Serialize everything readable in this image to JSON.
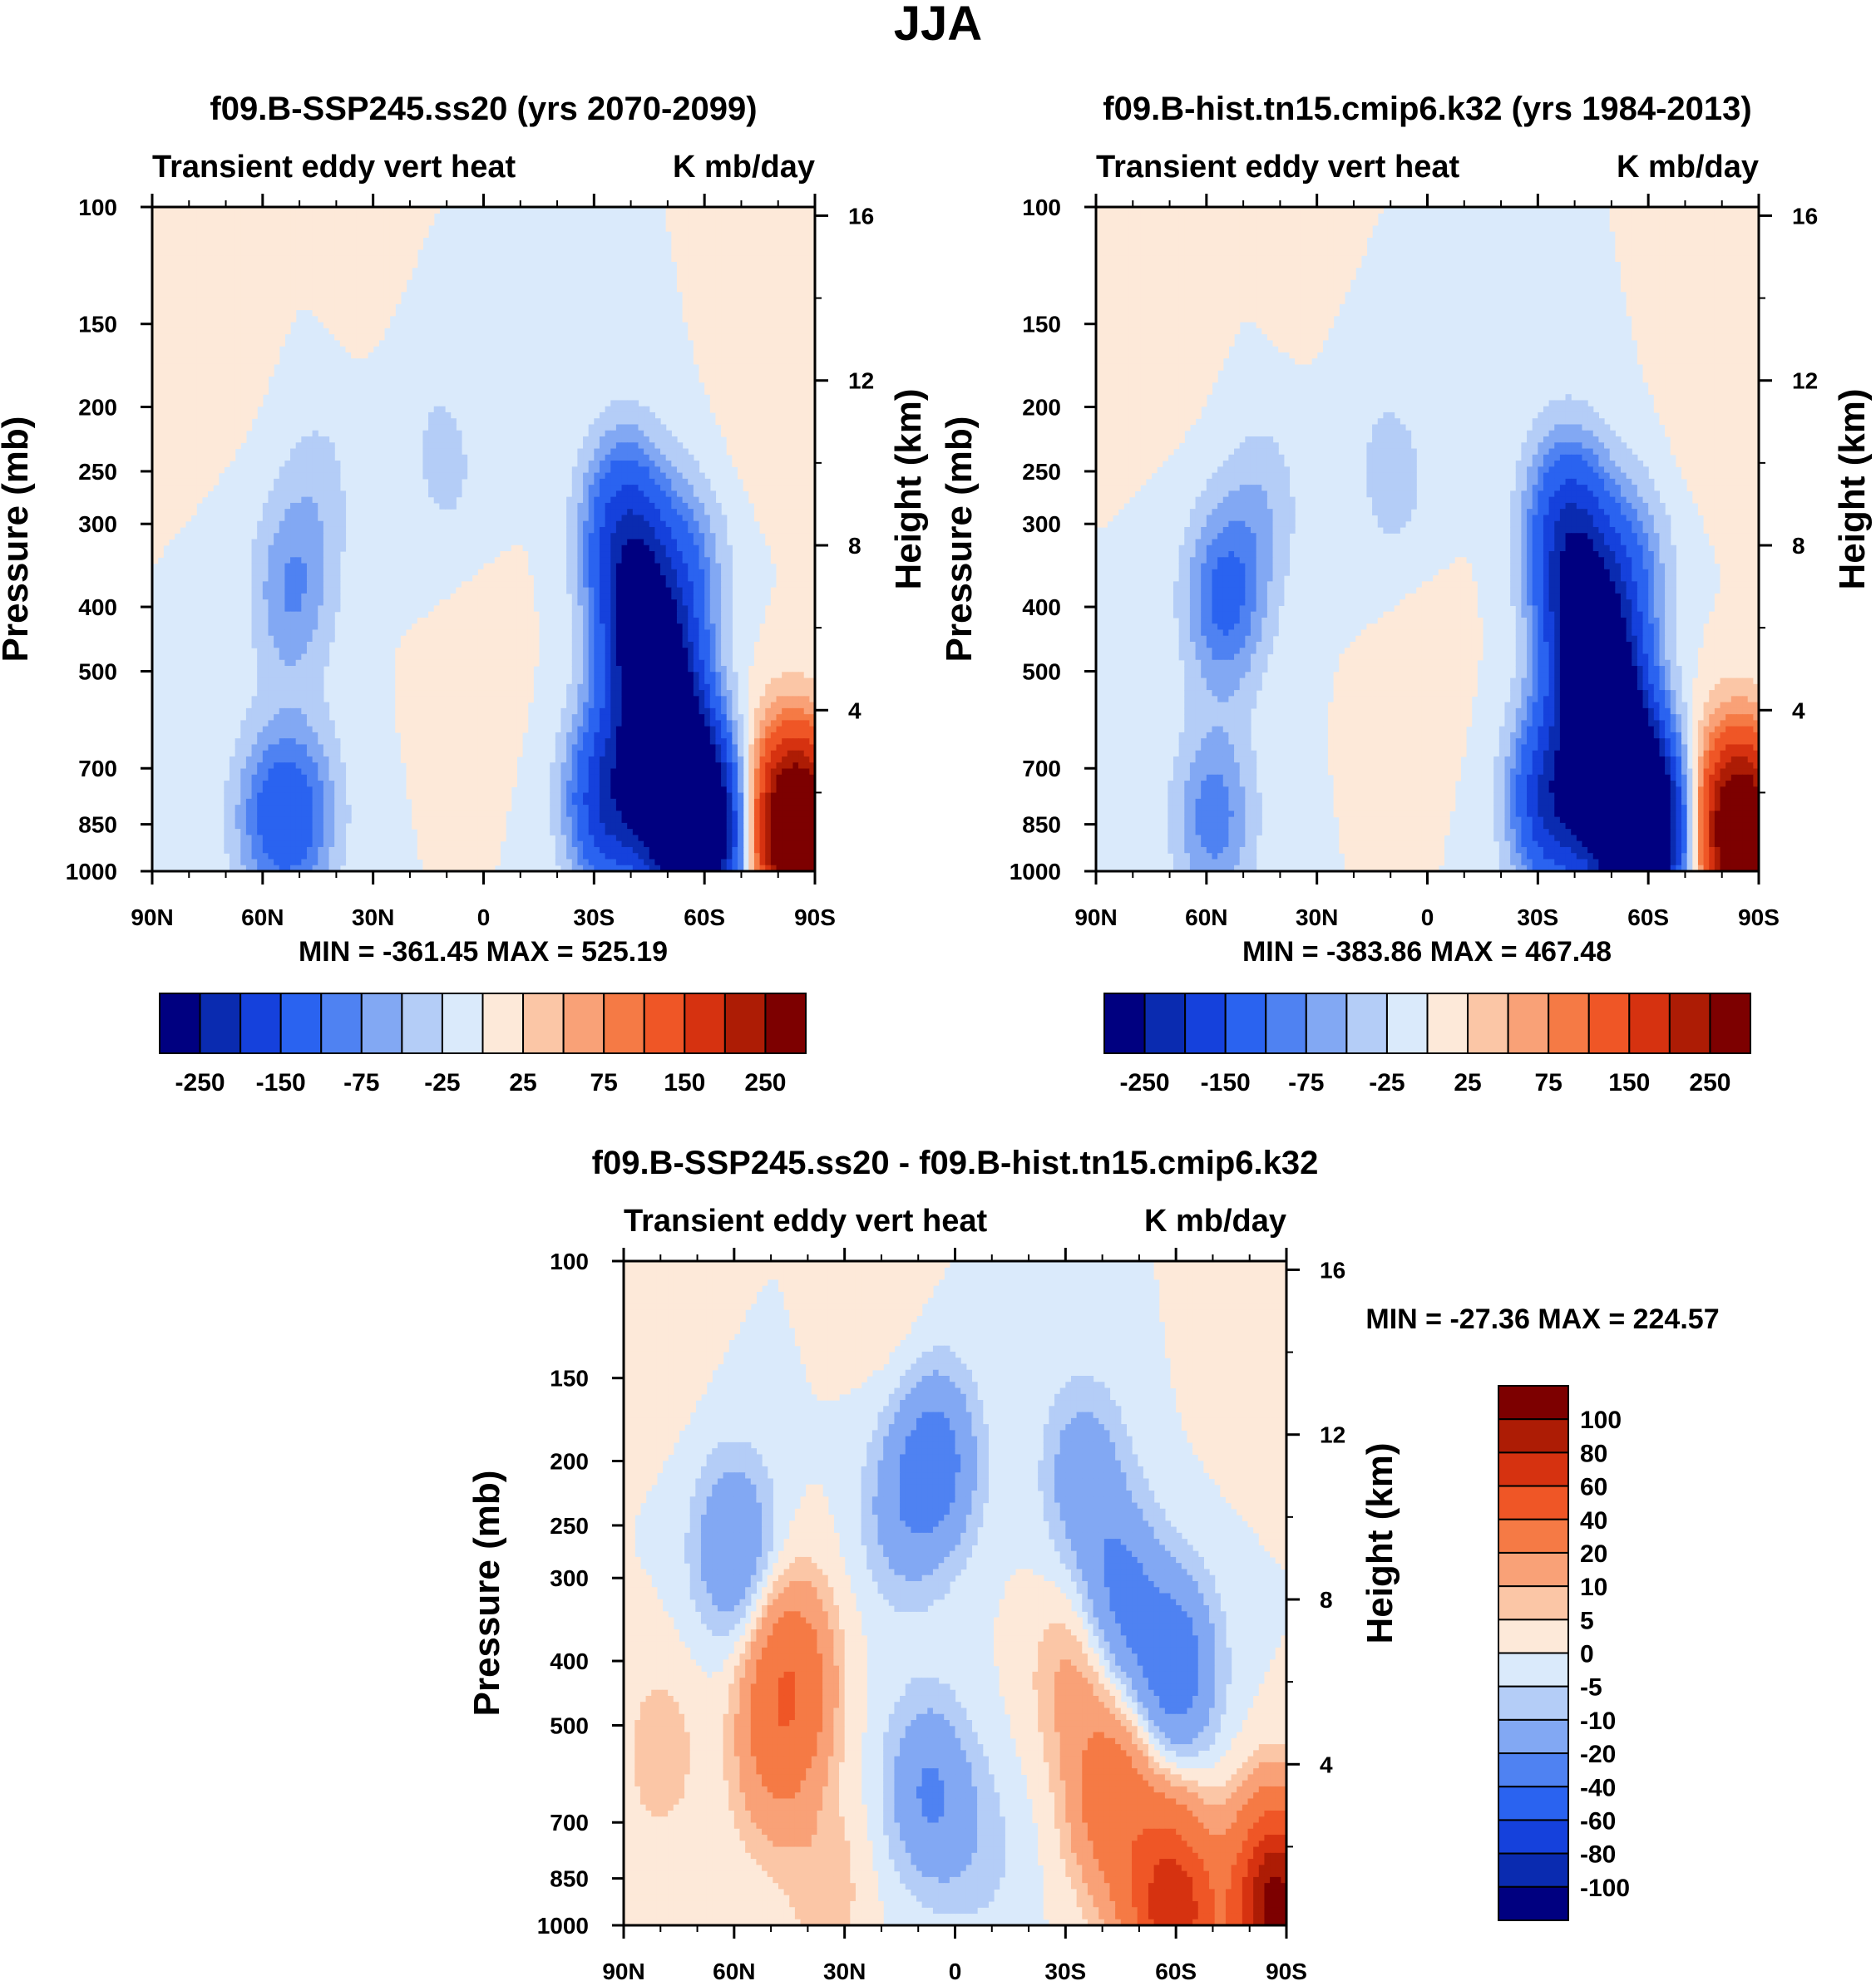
{
  "figure": {
    "title": "JJA"
  },
  "chart_data": [
    {
      "type": "heatmap",
      "id": "panel-top-left",
      "title": "f09.B-SSP245.ss20 (yrs 2070-2099)",
      "left_label": "Transient eddy vert heat",
      "right_label": "K mb/day",
      "ylabel": "Pressure (mb)",
      "ylabel_right": "Height (km)",
      "x_ticks": [
        "90N",
        "60N",
        "30N",
        "0",
        "30S",
        "60S",
        "90S"
      ],
      "y_ticks": [
        100,
        150,
        200,
        250,
        300,
        400,
        500,
        700,
        850,
        1000
      ],
      "y_ticks_right": [
        16,
        12,
        8,
        4
      ],
      "stats": "MIN = -361.45   MAX = 525.19",
      "min": -361.45,
      "max": 525.19,
      "colorbar_labels": [
        "-250",
        "-150",
        "-75",
        "-25",
        "25",
        "75",
        "150",
        "250"
      ],
      "features": [
        {
          "lat": -52,
          "p": 760,
          "value": -330
        },
        {
          "lat": -60,
          "p": 880,
          "value": -300
        },
        {
          "lat": -48,
          "p": 540,
          "value": -240
        },
        {
          "lat": -42,
          "p": 420,
          "value": -200
        },
        {
          "lat": -38,
          "p": 300,
          "value": -150
        },
        {
          "lat": -34,
          "p": 780,
          "value": -200
        },
        {
          "lat": -55,
          "p": 350,
          "value": -80
        },
        {
          "lat": -86,
          "p": 900,
          "value": 320
        },
        {
          "lat": -82,
          "p": 800,
          "value": 120
        },
        {
          "lat": 52,
          "p": 380,
          "value": -75
        },
        {
          "lat": 58,
          "p": 830,
          "value": -85
        },
        {
          "lat": 49,
          "p": 820,
          "value": -80
        },
        {
          "lat": 45,
          "p": 260,
          "value": -30
        },
        {
          "lat": 10,
          "p": 250,
          "value": -30
        },
        {
          "lat": 18,
          "p": 170,
          "value": -12
        },
        {
          "lat": 2,
          "p": 480,
          "value": 12
        },
        {
          "lat": 30,
          "p": 120,
          "value": 12
        },
        {
          "lat": 70,
          "p": 150,
          "value": 12
        },
        {
          "lat": -75,
          "p": 200,
          "value": 12
        }
      ]
    },
    {
      "type": "heatmap",
      "id": "panel-top-right",
      "title": "f09.B-hist.tn15.cmip6.k32 (yrs 1984-2013)",
      "left_label": "Transient eddy vert heat",
      "right_label": "K mb/day",
      "ylabel": "Pressure (mb)",
      "ylabel_right": "Height (km)",
      "x_ticks": [
        "90N",
        "60N",
        "30N",
        "0",
        "30S",
        "60S",
        "90S"
      ],
      "y_ticks": [
        100,
        150,
        200,
        250,
        300,
        400,
        500,
        700,
        850,
        1000
      ],
      "y_ticks_right": [
        16,
        12,
        8,
        4
      ],
      "stats": "MIN = -383.86   MAX = 467.48",
      "min": -383.86,
      "max": 467.48,
      "colorbar_labels": [
        "-250",
        "-150",
        "-75",
        "-25",
        "25",
        "75",
        "150",
        "250"
      ],
      "features": [
        {
          "lat": -52,
          "p": 760,
          "value": -350
        },
        {
          "lat": -60,
          "p": 880,
          "value": -320
        },
        {
          "lat": -48,
          "p": 540,
          "value": -250
        },
        {
          "lat": -42,
          "p": 420,
          "value": -210
        },
        {
          "lat": -38,
          "p": 300,
          "value": -160
        },
        {
          "lat": -34,
          "p": 780,
          "value": -210
        },
        {
          "lat": -55,
          "p": 350,
          "value": -80
        },
        {
          "lat": -86,
          "p": 900,
          "value": 300
        },
        {
          "lat": -82,
          "p": 800,
          "value": 100
        },
        {
          "lat": 55,
          "p": 390,
          "value": -110
        },
        {
          "lat": 58,
          "p": 830,
          "value": -90
        },
        {
          "lat": 45,
          "p": 280,
          "value": -40
        },
        {
          "lat": 9,
          "p": 260,
          "value": -35
        },
        {
          "lat": 18,
          "p": 170,
          "value": -12
        },
        {
          "lat": 2,
          "p": 480,
          "value": 12
        },
        {
          "lat": 30,
          "p": 120,
          "value": 12
        },
        {
          "lat": 70,
          "p": 150,
          "value": 12
        },
        {
          "lat": -75,
          "p": 200,
          "value": 12
        }
      ]
    },
    {
      "type": "heatmap",
      "id": "panel-bottom-diff",
      "title": "f09.B-SSP245.ss20 - f09.B-hist.tn15.cmip6.k32",
      "left_label": "Transient eddy vert heat",
      "right_label": "K mb/day",
      "ylabel": "Pressure (mb)",
      "ylabel_right": "Height (km)",
      "x_ticks": [
        "90N",
        "60N",
        "30N",
        "0",
        "30S",
        "60S",
        "90S"
      ],
      "y_ticks": [
        100,
        150,
        200,
        250,
        300,
        400,
        500,
        700,
        850,
        1000
      ],
      "y_ticks_right": [
        16,
        12,
        8,
        4
      ],
      "stats": "MIN = -27.36   MAX = 224.57",
      "min": -27.36,
      "max": 224.57,
      "colorbar_labels": [
        "100",
        "80",
        "60",
        "40",
        "20",
        "10",
        "5",
        "0",
        "-5",
        "-10",
        "-20",
        "-40",
        "-60",
        "-80",
        "-100"
      ],
      "features": [
        {
          "lat": 46,
          "p": 470,
          "value": 24
        },
        {
          "lat": 44,
          "p": 400,
          "value": 18
        },
        {
          "lat": 50,
          "p": 600,
          "value": 10
        },
        {
          "lat": 80,
          "p": 550,
          "value": 8
        },
        {
          "lat": 35,
          "p": 880,
          "value": 8
        },
        {
          "lat": -42,
          "p": 640,
          "value": 28
        },
        {
          "lat": -32,
          "p": 420,
          "value": 12
        },
        {
          "lat": -60,
          "p": 960,
          "value": 70
        },
        {
          "lat": -87,
          "p": 930,
          "value": 110
        },
        {
          "lat": -52,
          "p": 820,
          "value": 14
        },
        {
          "lat": -45,
          "p": 320,
          "value": -22
        },
        {
          "lat": -60,
          "p": 410,
          "value": -28
        },
        {
          "lat": -35,
          "p": 210,
          "value": -16
        },
        {
          "lat": 60,
          "p": 270,
          "value": -20
        },
        {
          "lat": 5,
          "p": 200,
          "value": -25
        },
        {
          "lat": 15,
          "p": 240,
          "value": -12
        },
        {
          "lat": 8,
          "p": 620,
          "value": -18
        },
        {
          "lat": 0,
          "p": 700,
          "value": -6
        },
        {
          "lat": -10,
          "p": 800,
          "value": -4
        },
        {
          "lat": 80,
          "p": 130,
          "value": 3
        },
        {
          "lat": 18,
          "p": 120,
          "value": 3
        },
        {
          "lat": -80,
          "p": 140,
          "value": 3
        }
      ]
    }
  ],
  "colorbars": {
    "top": {
      "levels": [
        -250,
        -200,
        -150,
        -100,
        -75,
        -50,
        -25,
        0,
        25,
        50,
        75,
        100,
        150,
        200,
        250
      ],
      "colors": [
        "#000080",
        "#0a2bb0",
        "#1541dc",
        "#2a63f0",
        "#4f82f2",
        "#82a8f3",
        "#b4cdf7",
        "#daeafb",
        "#fde9d9",
        "#fbc6a6",
        "#f9a177",
        "#f57a45",
        "#ef5626",
        "#d63210",
        "#ad1c05",
        "#7d0000"
      ]
    },
    "diff": {
      "levels": [
        -100,
        -80,
        -60,
        -40,
        -20,
        -10,
        -5,
        0,
        5,
        10,
        20,
        40,
        60,
        80,
        100
      ],
      "colors": [
        "#000080",
        "#0a2bb0",
        "#1541dc",
        "#2a63f0",
        "#4f82f2",
        "#82a8f3",
        "#b4cdf7",
        "#daeafb",
        "#fde9d9",
        "#fbc6a6",
        "#f9a177",
        "#f57a45",
        "#ef5626",
        "#d63210",
        "#ad1c05",
        "#7d0000"
      ]
    }
  }
}
